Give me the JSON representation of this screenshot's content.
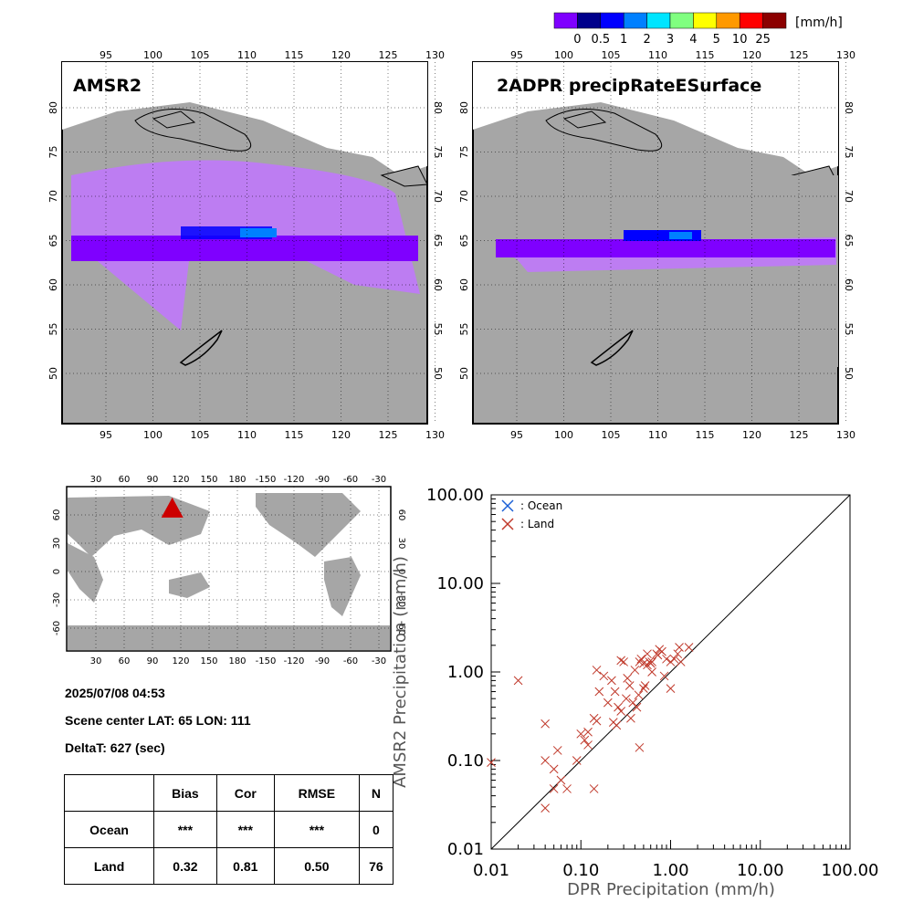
{
  "colorbar": {
    "unit": "[mm/h]",
    "colors": [
      "#7f00ff",
      "#00008b",
      "#0000ff",
      "#0080ff",
      "#00e5ff",
      "#80ff80",
      "#ffff00",
      "#ff9900",
      "#ff0000",
      "#8b0000"
    ],
    "labels": [
      "0",
      "0.5",
      "1",
      "2",
      "3",
      "4",
      "5",
      "10",
      "25"
    ]
  },
  "map_left": {
    "title": "AMSR2"
  },
  "map_right": {
    "title": "2ADPR precipRateESurface"
  },
  "map_axes": {
    "lon_ticks": [
      "95",
      "100",
      "105",
      "110",
      "115",
      "120",
      "125",
      "130"
    ],
    "lat_ticks": [
      "80",
      "75",
      "70",
      "65",
      "60",
      "55",
      "50"
    ]
  },
  "world_map": {
    "lon_ticks": [
      "30",
      "60",
      "90",
      "120",
      "150",
      "180",
      "-150",
      "-120",
      "-90",
      "-60",
      "-30"
    ],
    "lat_ticks": [
      "60",
      "30",
      "0",
      "-30",
      "-60"
    ],
    "marker_color": "#cc0000",
    "marker": {
      "lat": 65,
      "lon": 111
    }
  },
  "info": {
    "datetime": "2025/07/08 04:53",
    "scene_center": "Scene center LAT: 65   LON: 111",
    "delta_t": "DeltaT:  627 (sec)"
  },
  "stats_table": {
    "headers": [
      "",
      "Bias",
      "Cor",
      "RMSE",
      "N"
    ],
    "rows": [
      [
        "Ocean",
        "***",
        "***",
        "***",
        "0"
      ],
      [
        "Land",
        "0.32",
        "0.81",
        "0.50",
        "76"
      ]
    ]
  },
  "chart_data": {
    "type": "scatter",
    "xlabel": "DPR Precipitation (mm/h)",
    "ylabel": "AMSR2 Precipitation (mm/h)",
    "xscale": "log",
    "yscale": "log",
    "xlim": [
      0.01,
      100
    ],
    "ylim": [
      0.01,
      100
    ],
    "tick_labels": [
      "0.01",
      "0.10",
      "1.00",
      "10.00",
      "100.00"
    ],
    "grid": false,
    "legend_position": "top-left",
    "reference_line": "y = x",
    "series": [
      {
        "name": ": Ocean",
        "color": "#1a5fd6",
        "points": []
      },
      {
        "name": ": Land",
        "color": "#c0392b",
        "points": [
          [
            0.01,
            0.095
          ],
          [
            0.02,
            0.8
          ],
          [
            0.04,
            0.26
          ],
          [
            0.04,
            0.1
          ],
          [
            0.04,
            0.029
          ],
          [
            0.05,
            0.08
          ],
          [
            0.05,
            0.048
          ],
          [
            0.055,
            0.13
          ],
          [
            0.07,
            0.048
          ],
          [
            0.09,
            0.1
          ],
          [
            0.1,
            0.2
          ],
          [
            0.11,
            0.17
          ],
          [
            0.12,
            0.21
          ],
          [
            0.14,
            0.3
          ],
          [
            0.14,
            0.048
          ],
          [
            0.15,
            0.28
          ],
          [
            0.15,
            1.05
          ],
          [
            0.16,
            0.6
          ],
          [
            0.2,
            0.45
          ],
          [
            0.22,
            0.8
          ],
          [
            0.23,
            0.27
          ],
          [
            0.24,
            0.6
          ],
          [
            0.25,
            0.25
          ],
          [
            0.28,
            1.35
          ],
          [
            0.28,
            0.36
          ],
          [
            0.3,
            1.3
          ],
          [
            0.32,
            0.5
          ],
          [
            0.35,
            0.7
          ],
          [
            0.38,
            0.45
          ],
          [
            0.4,
            1.05
          ],
          [
            0.42,
            0.4
          ],
          [
            0.44,
            0.55
          ],
          [
            0.45,
            1.3
          ],
          [
            0.45,
            0.14
          ],
          [
            0.47,
            1.4
          ],
          [
            0.5,
            1.25
          ],
          [
            0.5,
            0.65
          ],
          [
            0.52,
            0.7
          ],
          [
            0.55,
            1.6
          ],
          [
            0.55,
            1.2
          ],
          [
            0.58,
            1.3
          ],
          [
            0.6,
            1.25
          ],
          [
            0.62,
            1.3
          ],
          [
            0.7,
            1.6
          ],
          [
            0.75,
            1.8
          ],
          [
            0.8,
            1.7
          ],
          [
            0.85,
            0.9
          ],
          [
            0.9,
            1.4
          ],
          [
            1.0,
            1.3
          ],
          [
            1.0,
            0.65
          ],
          [
            1.1,
            1.4
          ],
          [
            1.2,
            1.6
          ],
          [
            1.25,
            1.9
          ],
          [
            1.3,
            1.3
          ],
          [
            1.6,
            1.9
          ],
          [
            0.33,
            0.85
          ],
          [
            0.18,
            0.9
          ],
          [
            0.12,
            0.15
          ],
          [
            0.06,
            0.06
          ],
          [
            0.26,
            0.4
          ],
          [
            0.36,
            0.3
          ],
          [
            0.62,
            1.0
          ],
          [
            0.72,
            1.55
          ]
        ]
      }
    ]
  }
}
